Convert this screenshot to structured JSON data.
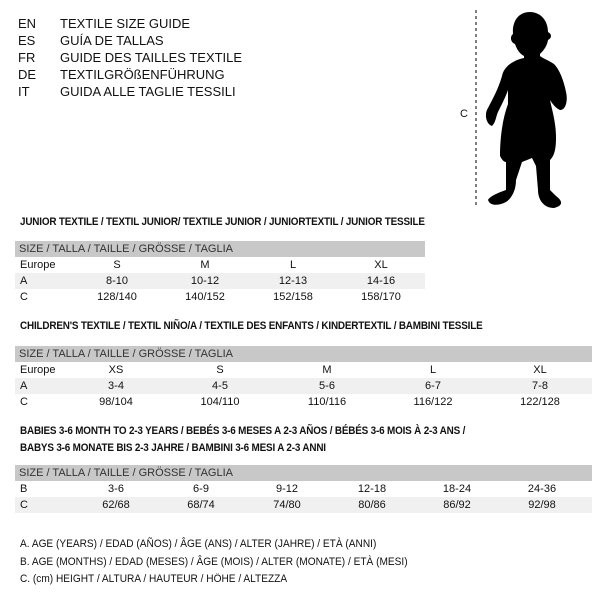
{
  "titles": [
    {
      "code": "EN",
      "text": "TEXTILE SIZE GUIDE"
    },
    {
      "code": "ES",
      "text": "GUÍA DE TALLAS"
    },
    {
      "code": "FR",
      "text": "GUIDE DES TAILLES TEXTILE"
    },
    {
      "code": "DE",
      "text": "TEXTILGRÖßENFÜHRUNG"
    },
    {
      "code": "IT",
      "text": "GUIDA ALLE TAGLIE TESSILI"
    }
  ],
  "figure": {
    "measure_label": "C"
  },
  "tables": [
    {
      "title": "JUNIOR TEXTILE / TEXTIL JUNIOR/ TEXTILE JUNIOR / JUNIORTEXTIL / JUNIOR TESSILE",
      "header": "SIZE / TALLA / TAILLE / GRÖSSE / TAGLIA",
      "rows": [
        {
          "label": "Europe",
          "values": [
            "S",
            "M",
            "L",
            "XL"
          ]
        },
        {
          "label": "A",
          "values": [
            "8-10",
            "10-12",
            "12-13",
            "14-16"
          ]
        },
        {
          "label": "C",
          "values": [
            "128/140",
            "140/152",
            "152/158",
            "158/170"
          ]
        }
      ]
    },
    {
      "title": "CHILDREN'S TEXTILE / TEXTIL NIÑO/A / TEXTILE DES ENFANTS / KINDERTEXTIL / BAMBINI TESSILE",
      "header": "SIZE / TALLA / TAILLE / GRÖSSE / TAGLIA",
      "rows": [
        {
          "label": "Europe",
          "values": [
            "XS",
            "S",
            "M",
            "L",
            "XL"
          ]
        },
        {
          "label": "A",
          "values": [
            "3-4",
            "4-5",
            "5-6",
            "6-7",
            "7-8"
          ]
        },
        {
          "label": "C",
          "values": [
            "98/104",
            "104/110",
            "110/116",
            "116/122",
            "122/128"
          ]
        }
      ]
    },
    {
      "title": "BABIES 3-6 MONTH TO 2-3 YEARS / BEBÉS 3-6 MESES A 2-3 AÑOS / BÉBÉS 3-6 MOIS À 2-3 ANS /",
      "title_line2": "BABYS 3-6 MONATE BIS 2-3 JAHRE / BAMBINI 3-6 MESI A 2-3 ANNI",
      "header": "SIZE / TALLA / TAILLE / GRÖSSE / TAGLIA",
      "rows": [
        {
          "label": "B",
          "values": [
            "3-6",
            "6-9",
            "9-12",
            "12-18",
            "18-24",
            "24-36"
          ]
        },
        {
          "label": "C",
          "values": [
            "62/68",
            "68/74",
            "74/80",
            "80/86",
            "86/92",
            "92/98"
          ]
        }
      ]
    }
  ],
  "legend": [
    "A. AGE (YEARS) / EDAD (AÑOS) / ÂGE (ANS) / ALTER (JAHRE) / ETÀ (ANNI)",
    "B. AGE (MONTHS) / EDAD (MESES) / ÂGE (MOIS) / ALTER (MONATE) / ETÀ (MESI)",
    "C. (cm) HEIGHT / ALTURA / HAUTEUR / HÖHE / ALTEZZA"
  ],
  "colors": {
    "header_bg": "#c8c8c8",
    "alt_row_bg": "#f0f0f0",
    "text": "#111111"
  }
}
